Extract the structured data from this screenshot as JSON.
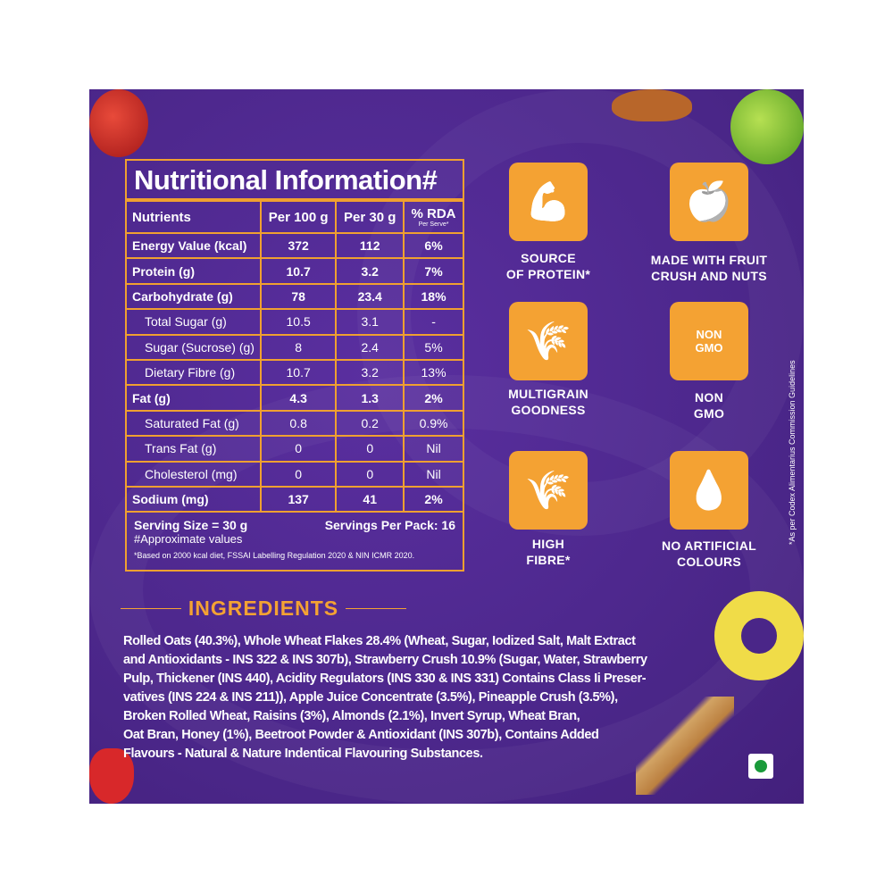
{
  "colors": {
    "background": "#4a2688",
    "accent": "#f4a233",
    "text": "#ffffff",
    "veg_mark": "#1a9a3a"
  },
  "nutrition": {
    "title": "Nutritional Information#",
    "headers": [
      "Nutrients",
      "Per 100 g",
      "Per 30 g",
      "% RDA"
    ],
    "rda_sub": "Per Serve*",
    "rows": [
      {
        "name": "Energy Value (kcal)",
        "per100": "372",
        "per30": "112",
        "rda": "6%",
        "bold": true
      },
      {
        "name": "Protein (g)",
        "per100": "10.7",
        "per30": "3.2",
        "rda": "7%",
        "bold": true
      },
      {
        "name": "Carbohydrate (g)",
        "per100": "78",
        "per30": "23.4",
        "rda": "18%",
        "bold": true
      },
      {
        "name": "Total Sugar (g)",
        "per100": "10.5",
        "per30": "3.1",
        "rda": "-",
        "bold": false
      },
      {
        "name": "Sugar (Sucrose) (g)",
        "per100": "8",
        "per30": "2.4",
        "rda": "5%",
        "bold": false
      },
      {
        "name": "Dietary Fibre (g)",
        "per100": "10.7",
        "per30": "3.2",
        "rda": "13%",
        "bold": false
      },
      {
        "name": "Fat (g)",
        "per100": "4.3",
        "per30": "1.3",
        "rda": "2%",
        "bold": true
      },
      {
        "name": "Saturated Fat (g)",
        "per100": "0.8",
        "per30": "0.2",
        "rda": "0.9%",
        "bold": false
      },
      {
        "name": "Trans Fat (g)",
        "per100": "0",
        "per30": "0",
        "rda": "Nil",
        "bold": false
      },
      {
        "name": "Cholesterol (mg)",
        "per100": "0",
        "per30": "0",
        "rda": "Nil",
        "bold": false
      },
      {
        "name": "Sodium (mg)",
        "per100": "137",
        "per30": "41",
        "rda": "2%",
        "bold": true
      }
    ],
    "serving_size": "Serving Size = 30 g",
    "servings_per_pack": "Servings Per Pack: 16",
    "approx_note": "#Approximate values",
    "rda_note": "*Based on 2000 kcal diet, FSSAI Labelling Regulation 2020 & NIN ICMR 2020."
  },
  "features": [
    {
      "icon": "flexed-arm-icon",
      "label1": "SOURCE",
      "label2": "OF PROTEIN*"
    },
    {
      "icon": "fruit-nuts-icon",
      "label1": "MADE WITH FRUIT",
      "label2": "CRUSH AND NUTS"
    },
    {
      "icon": "grain-icon",
      "label1": "MULTIGRAIN",
      "label2": "GOODNESS"
    },
    {
      "icon": "non-gmo-icon",
      "label1": "NON",
      "label2": "GMO",
      "badge": "NON GMO"
    },
    {
      "icon": "wheat-icon",
      "label1": "HIGH",
      "label2": "FIBRE*"
    },
    {
      "icon": "dropper-icon",
      "label1": "NO ARTIFICIAL",
      "label2": "COLOURS"
    }
  ],
  "codex_note": "*As per Codex Alimentarius Commission Guidelines",
  "ingredients": {
    "heading": "INGREDIENTS",
    "lines": [
      "Rolled Oats (40.3%), Whole Wheat Flakes 28.4% (Wheat, Sugar, Iodized Salt, Malt Extract",
      "and Antioxidants - INS 322 & INS 307b), Strawberry Crush 10.9% (Sugar, Water, Strawberry",
      "Pulp, Thickener (INS 440), Acidity Regulators (INS 330 & INS 331) Contains Class Ii Preser-",
      "vatives (INS 224 & INS 211)), Apple Juice Concentrate (3.5%), Pineapple Crush (3.5%),",
      "Broken Rolled Wheat, Raisins (3%), Almonds (2.1%), Invert Syrup, Wheat Bran,",
      "Oat Bran, Honey (1%), Beetroot Powder &  Antioxidant (INS 307b), Contains Added",
      "Flavours - Natural & Nature Indentical Flavouring Substances."
    ]
  }
}
